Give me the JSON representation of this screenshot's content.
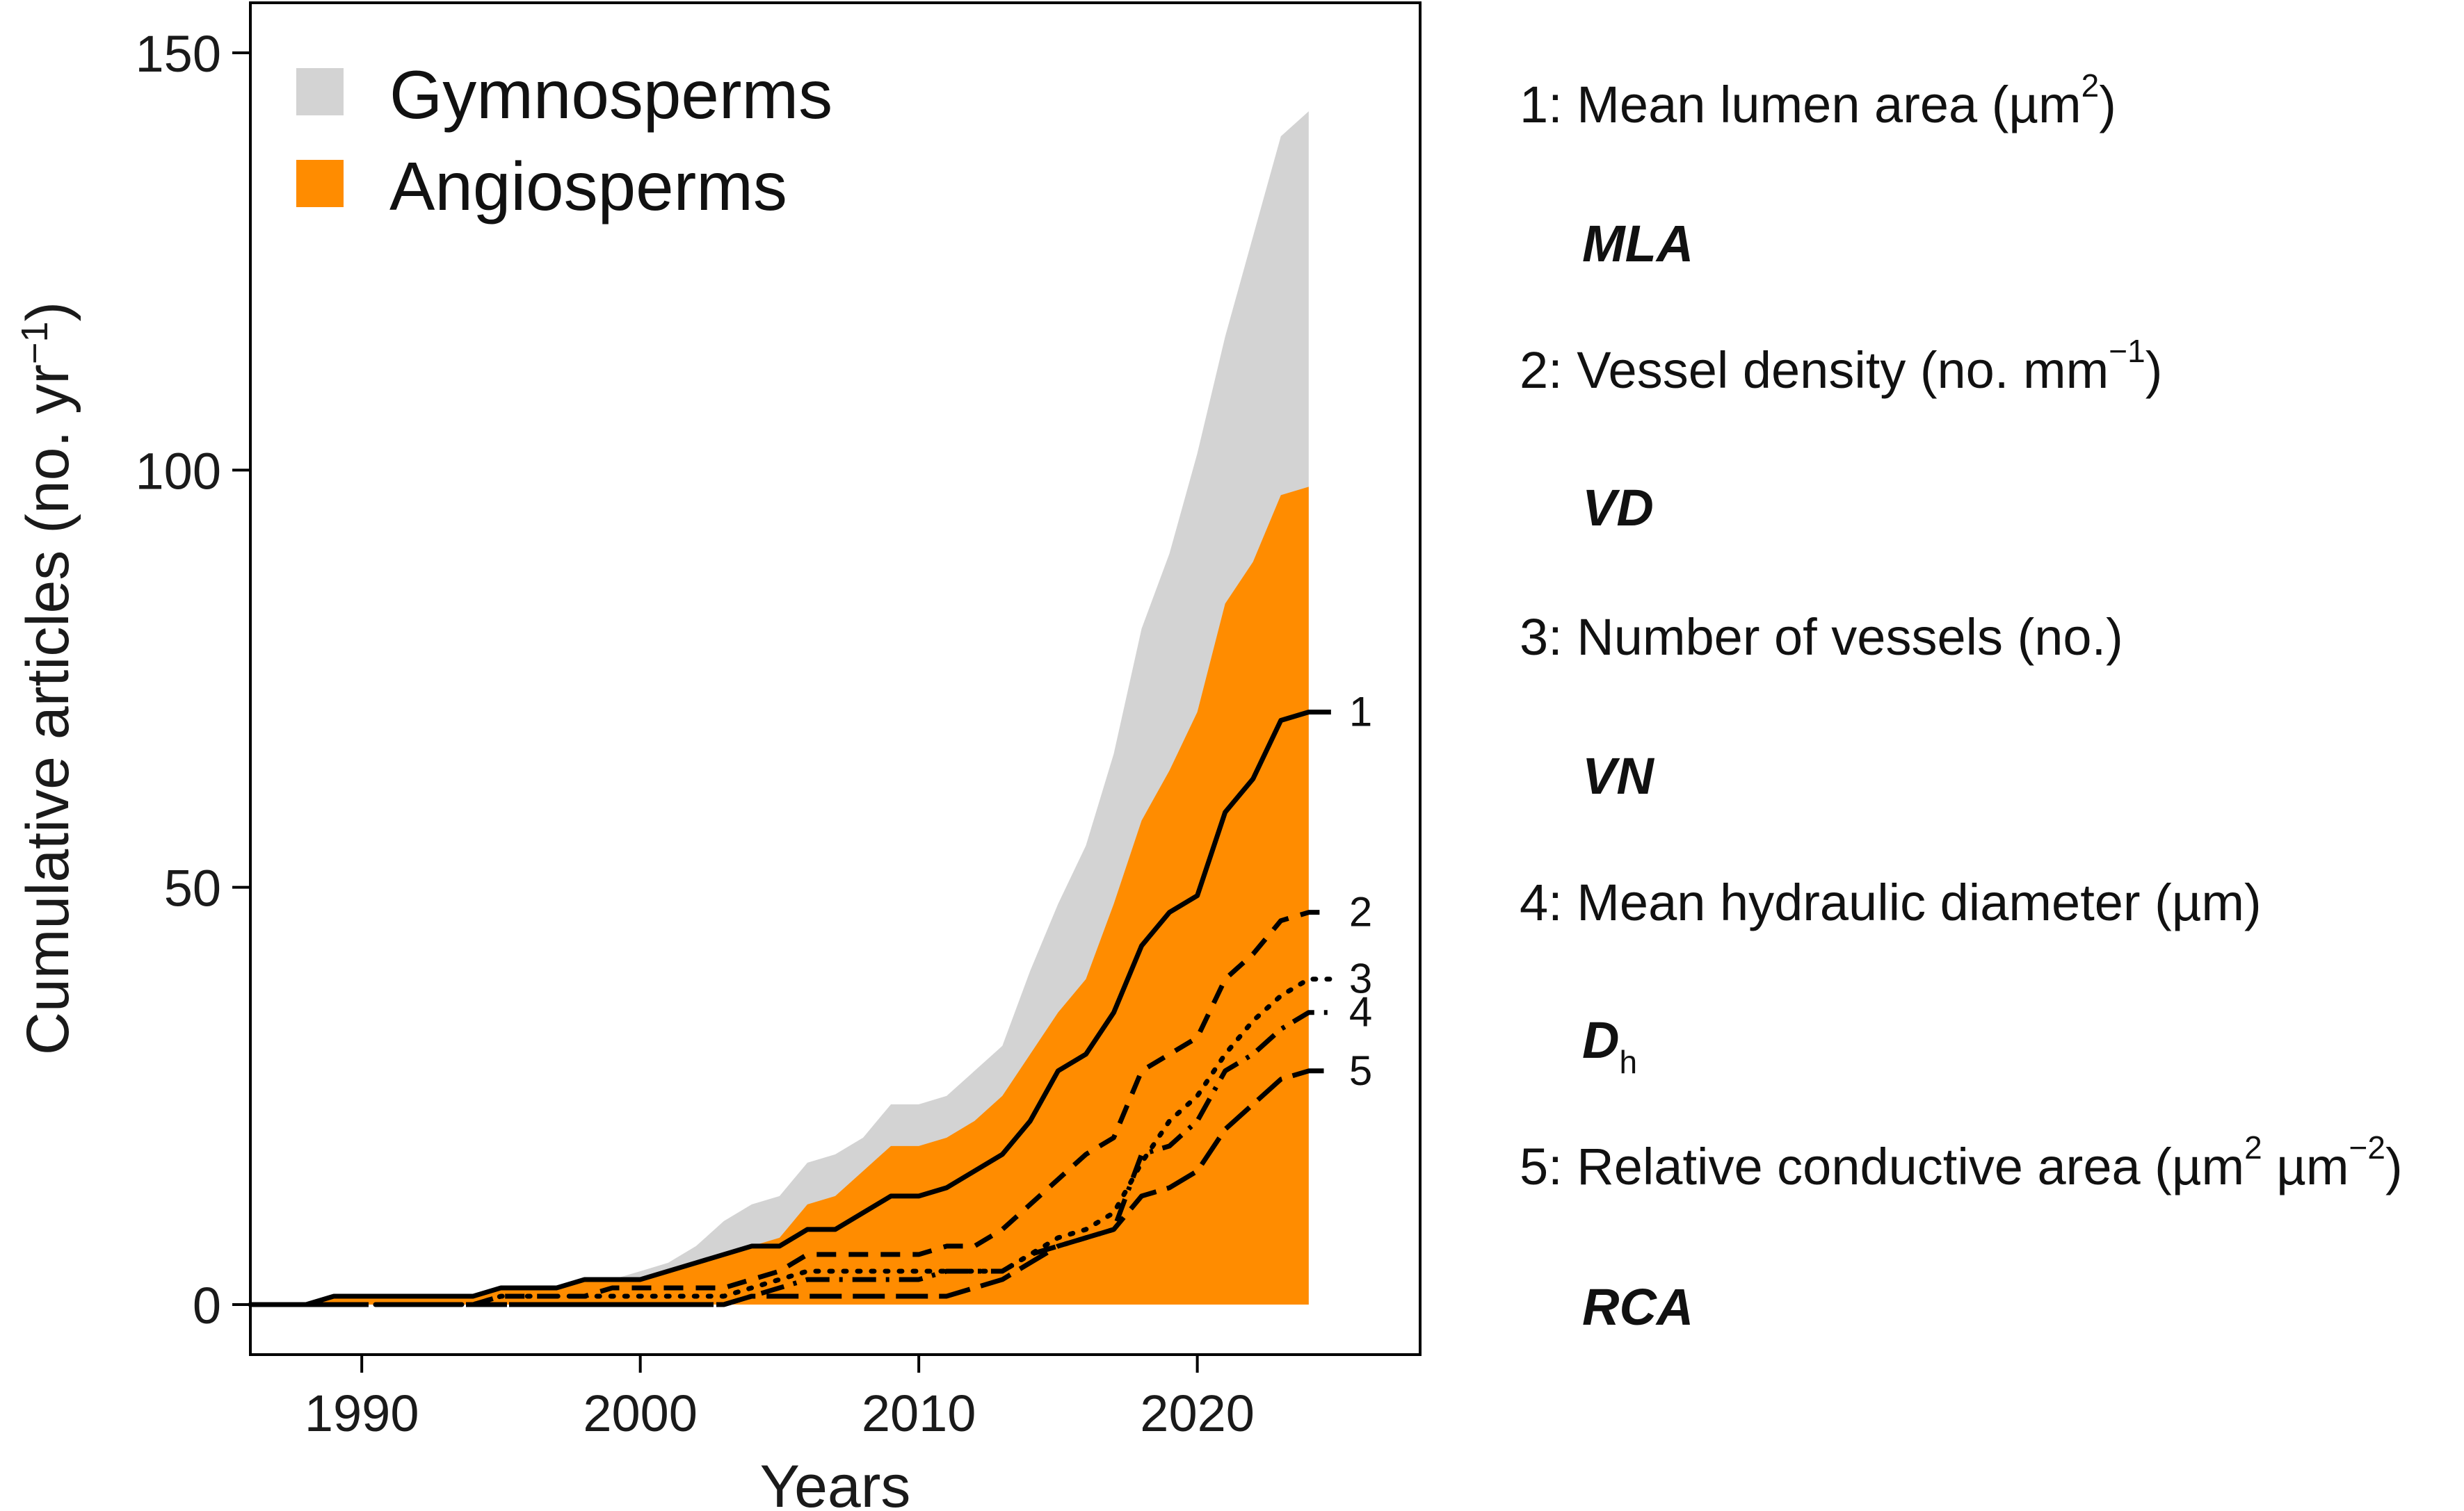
{
  "chart_data": {
    "type": "area",
    "xlabel": "Years",
    "ylabel_base": "Cumulative articles (no. yr",
    "ylabel_sup": "−1",
    "ylabel_end": ")",
    "xlim": [
      1986,
      2028
    ],
    "ylim": [
      -6,
      156
    ],
    "x_ticks": [
      1990,
      2000,
      2010,
      2020
    ],
    "x_tick_labels": [
      "1990",
      "2000",
      "2010",
      "2020"
    ],
    "y_ticks": [
      0,
      50,
      100,
      150
    ],
    "y_tick_labels": [
      "0",
      "50",
      "100",
      "150"
    ],
    "legend": {
      "position": "top-left",
      "entries": [
        {
          "label": "Gymnosperms",
          "color": "#d3d3d3"
        },
        {
          "label": "Angiosperms",
          "color": "#ff8c00"
        }
      ]
    },
    "x": [
      1986,
      1987,
      1988,
      1989,
      1990,
      1991,
      1992,
      1993,
      1994,
      1995,
      1996,
      1997,
      1998,
      1999,
      2000,
      2001,
      2002,
      2003,
      2004,
      2005,
      2006,
      2007,
      2008,
      2009,
      2010,
      2011,
      2012,
      2013,
      2014,
      2015,
      2016,
      2017,
      2018,
      2019,
      2020,
      2021,
      2022,
      2023,
      2024
    ],
    "areas": [
      {
        "name": "Gymnosperms",
        "color": "#d3d3d3",
        "values": [
          0,
          0,
          0,
          1,
          1,
          1,
          1,
          1,
          1,
          2,
          2,
          2,
          3,
          3,
          4,
          5,
          7,
          10,
          12,
          13,
          17,
          18,
          20,
          24,
          24,
          25,
          28,
          31,
          40,
          48,
          55,
          66,
          81,
          90,
          102,
          116,
          128,
          140,
          143
        ]
      },
      {
        "name": "Angiosperms",
        "color": "#ff8c00",
        "values": [
          0,
          0,
          0,
          1,
          1,
          1,
          1,
          1,
          1,
          2,
          2,
          2,
          3,
          3,
          3,
          4,
          5,
          6,
          7,
          8,
          12,
          13,
          16,
          19,
          19,
          20,
          22,
          25,
          30,
          35,
          39,
          48,
          58,
          64,
          71,
          84,
          89,
          97,
          98
        ]
      }
    ],
    "series": [
      {
        "id": "1",
        "name": "Mean lumen area",
        "abbr": "MLA",
        "style": "solid",
        "values": [
          0,
          0,
          0,
          1,
          1,
          1,
          1,
          1,
          1,
          2,
          2,
          2,
          3,
          3,
          3,
          4,
          5,
          6,
          7,
          7,
          9,
          9,
          11,
          13,
          13,
          14,
          16,
          18,
          22,
          28,
          30,
          35,
          43,
          47,
          49,
          59,
          63,
          70,
          71
        ]
      },
      {
        "id": "2",
        "name": "Vessel density",
        "abbr": "VD",
        "style": "dashed",
        "values": [
          0,
          0,
          0,
          0,
          0,
          0,
          0,
          0,
          0,
          1,
          1,
          1,
          1,
          2,
          2,
          2,
          2,
          2,
          3,
          4,
          6,
          6,
          6,
          6,
          6,
          7,
          7,
          9,
          12,
          15,
          18,
          20,
          28,
          30,
          32,
          39,
          42,
          46,
          47
        ]
      },
      {
        "id": "3",
        "name": "Number of vessels",
        "abbr": "VN",
        "style": "dotted",
        "values": [
          0,
          0,
          0,
          0,
          0,
          0,
          0,
          0,
          0,
          1,
          1,
          1,
          1,
          1,
          1,
          1,
          1,
          1,
          2,
          3,
          4,
          4,
          4,
          4,
          4,
          4,
          4,
          4,
          6,
          8,
          9,
          11,
          17,
          22,
          25,
          30,
          34,
          37,
          39
        ]
      },
      {
        "id": "4",
        "name": "Mean hydraulic diameter",
        "abbr": "Dh",
        "style": "dashdot",
        "values": [
          0,
          0,
          0,
          0,
          0,
          0,
          0,
          0,
          0,
          0,
          0,
          0,
          0,
          0,
          0,
          0,
          0,
          0,
          1,
          2,
          3,
          3,
          3,
          3,
          3,
          4,
          4,
          4,
          6,
          7,
          8,
          9,
          18,
          19,
          22,
          28,
          30,
          33,
          35
        ]
      },
      {
        "id": "5",
        "name": "Relative conductive area",
        "abbr": "RCA",
        "style": "longdash",
        "values": [
          0,
          0,
          0,
          0,
          0,
          0,
          0,
          0,
          0,
          0,
          0,
          0,
          0,
          0,
          0,
          0,
          0,
          0,
          1,
          1,
          1,
          1,
          1,
          1,
          1,
          1,
          2,
          3,
          5,
          7,
          8,
          9,
          13,
          14,
          16,
          21,
          24,
          27,
          28
        ]
      }
    ]
  },
  "side_legend": [
    {
      "pre": "1: Mean lumen area (µm",
      "sup": "2",
      "post": ")",
      "abbr": "MLA",
      "abbr_sub": ""
    },
    {
      "pre": "2: Vessel density (no. mm",
      "sup": "−1",
      "post": ")",
      "abbr": "VD",
      "abbr_sub": ""
    },
    {
      "pre": "3: Number of vessels (no.)",
      "sup": "",
      "post": "",
      "abbr": "VN",
      "abbr_sub": ""
    },
    {
      "pre": "4: Mean hydraulic diameter (µm)",
      "sup": "",
      "post": "",
      "abbr": "D",
      "abbr_sub": "h"
    },
    {
      "pre": "5: Relative conductive area (µm",
      "sup": "2",
      "post": " µm",
      "sup2": "−2",
      "post2": ")",
      "abbr": "RCA",
      "abbr_sub": ""
    }
  ]
}
